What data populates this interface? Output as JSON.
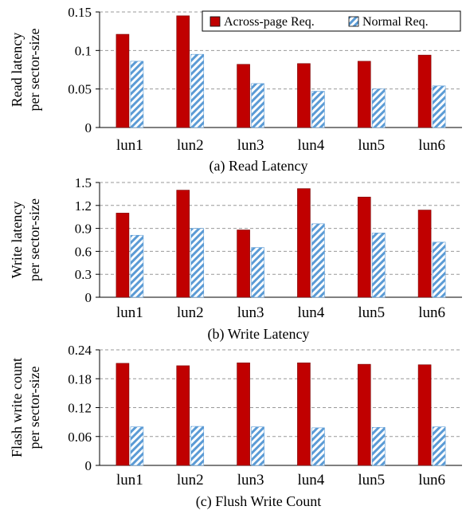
{
  "colors": {
    "across": "#c00000",
    "normal_stripe": "#5b9bd5",
    "grid": "#999999",
    "axis": "#000000"
  },
  "legend": {
    "entries": [
      "Across-page Req.",
      "Normal Req."
    ],
    "placement": "top-right"
  },
  "chart_data": [
    {
      "type": "bar",
      "title": "(a) Read Latency",
      "ylabel_lines": [
        "Read latency",
        "per sector-size"
      ],
      "categories": [
        "lun1",
        "lun2",
        "lun3",
        "lun4",
        "lun5",
        "lun6"
      ],
      "ylim": [
        0,
        0.15
      ],
      "yticks": [
        "0",
        "0.05",
        "0.1",
        "0.15"
      ],
      "grid": true,
      "series": [
        {
          "name": "Across-page Req.",
          "values": [
            0.121,
            0.145,
            0.082,
            0.083,
            0.086,
            0.094
          ]
        },
        {
          "name": "Normal Req.",
          "values": [
            0.086,
            0.095,
            0.057,
            0.047,
            0.05,
            0.054
          ]
        }
      ]
    },
    {
      "type": "bar",
      "title": "(b) Write Latency",
      "ylabel_lines": [
        "Write latency",
        "per sector-size"
      ],
      "categories": [
        "lun1",
        "lun2",
        "lun3",
        "lun4",
        "lun5",
        "lun6"
      ],
      "ylim": [
        0,
        1.5
      ],
      "yticks": [
        "0",
        "0.3",
        "0.6",
        "0.9",
        "1.2",
        "1.5"
      ],
      "grid": true,
      "series": [
        {
          "name": "Across-page Req.",
          "values": [
            1.1,
            1.4,
            0.88,
            1.42,
            1.31,
            1.14
          ]
        },
        {
          "name": "Normal Req.",
          "values": [
            0.81,
            0.9,
            0.65,
            0.96,
            0.84,
            0.72
          ]
        }
      ]
    },
    {
      "type": "bar",
      "title": "(c) Flush Write Count",
      "ylabel_lines": [
        "Flash write count",
        "per sector-size"
      ],
      "categories": [
        "lun1",
        "lun2",
        "lun3",
        "lun4",
        "lun5",
        "lun6"
      ],
      "ylim": [
        0,
        0.24
      ],
      "yticks": [
        "0",
        "0.06",
        "0.12",
        "0.18",
        "0.24"
      ],
      "grid": true,
      "series": [
        {
          "name": "Across-page Req.",
          "values": [
            0.212,
            0.207,
            0.213,
            0.213,
            0.21,
            0.209
          ]
        },
        {
          "name": "Normal Req.",
          "values": [
            0.08,
            0.081,
            0.08,
            0.078,
            0.079,
            0.08
          ]
        }
      ]
    }
  ]
}
